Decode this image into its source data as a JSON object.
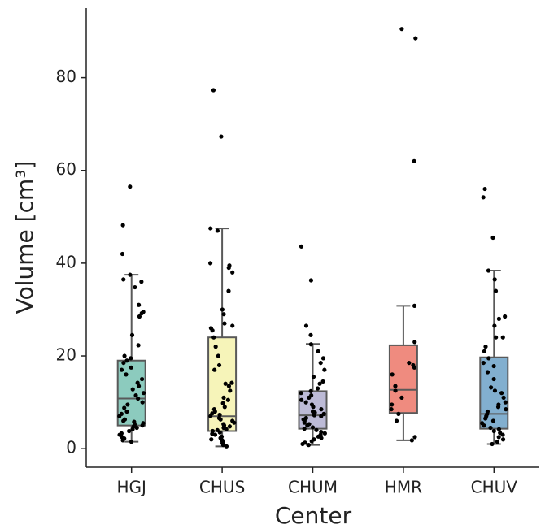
{
  "chart_data": {
    "type": "box",
    "xlabel": "Center",
    "ylabel": "Volume [cm³]",
    "categories": [
      "HGJ",
      "CHUS",
      "CHUM",
      "HMR",
      "CHUV"
    ],
    "colors": [
      "#8ccbbe",
      "#f6f4b9",
      "#bcbad6",
      "#ef8b7f",
      "#82afcf"
    ],
    "boxes": [
      {
        "whislo": 1.5,
        "q1": 5,
        "med": 10.8,
        "q3": 19,
        "whishi": 37.5
      },
      {
        "whislo": 0.5,
        "q1": 3.8,
        "med": 7,
        "q3": 24,
        "whishi": 47.5
      },
      {
        "whislo": 0.8,
        "q1": 4.3,
        "med": 7.2,
        "q3": 12.4,
        "whishi": 22.6
      },
      {
        "whislo": 1.8,
        "q1": 7.7,
        "med": 12.7,
        "q3": 22.3,
        "whishi": 30.8
      },
      {
        "whislo": 1,
        "q1": 4.3,
        "med": 7.5,
        "q3": 19.7,
        "whishi": 38.4
      }
    ],
    "points": [
      [
        1.5,
        1.8,
        2.2,
        2.5,
        3,
        3.3,
        3.8,
        4.2,
        4.5,
        4.8,
        5,
        5.2,
        5.5,
        5.8,
        6,
        6.3,
        7,
        7.5,
        8,
        8.8,
        9.5,
        10,
        10.8,
        11.5,
        12,
        12.8,
        13.5,
        14.2,
        15,
        16,
        17,
        17.5,
        18.5,
        19,
        19.5,
        20,
        22.3,
        24.5,
        28.5,
        29.2,
        29.5,
        31,
        34.8,
        36,
        36.5,
        37.5,
        42,
        48.2,
        56.5
      ],
      [
        0.5,
        0.8,
        1.2,
        1.5,
        1.8,
        2,
        2.3,
        2.6,
        3,
        3.2,
        3.5,
        3.8,
        4,
        4.2,
        4.5,
        4.8,
        5,
        5.3,
        5.6,
        6,
        6.3,
        6.6,
        7,
        7.3,
        7.6,
        8,
        8.5,
        9,
        9.8,
        10.5,
        11,
        12.5,
        13.5,
        14,
        14.2,
        17,
        18,
        20,
        22,
        24,
        25.5,
        26,
        26.5,
        27,
        29,
        30,
        34,
        38,
        39,
        39.5,
        40,
        47,
        47.5,
        67.3,
        77.3
      ],
      [
        0.8,
        1,
        1.3,
        1.6,
        2,
        2.3,
        2.6,
        3,
        3.3,
        3.6,
        4,
        4.3,
        4.6,
        5,
        5.3,
        5.6,
        6,
        6.3,
        6.6,
        7,
        7.2,
        7.5,
        7.8,
        8,
        8.5,
        9,
        9.5,
        10,
        10.5,
        11,
        11.5,
        12,
        12.4,
        13,
        14,
        14.5,
        15.5,
        17,
        18.5,
        19.5,
        21,
        22.5,
        24.5,
        26.5,
        36.3,
        43.6
      ],
      [
        1.8,
        2.5,
        6,
        7.5,
        8.5,
        9.5,
        11,
        12.5,
        13.5,
        16,
        17.5,
        18,
        18.5,
        23,
        30.8,
        62,
        88.5,
        90.5
      ],
      [
        1,
        1.5,
        2,
        2.5,
        3,
        3.4,
        3.8,
        4.2,
        4.5,
        5,
        5.5,
        6,
        6.5,
        7,
        7.5,
        8,
        8.5,
        9,
        9.5,
        10,
        11,
        12,
        12.5,
        13.2,
        15,
        16.5,
        17.8,
        18.5,
        19.5,
        21,
        22,
        24,
        24,
        26.5,
        28,
        28.5,
        34,
        36.5,
        38.4,
        45.5,
        54.2,
        56
      ]
    ],
    "ylim": [
      -4,
      95
    ],
    "yticks": [
      0,
      20,
      40,
      60,
      80
    ]
  }
}
